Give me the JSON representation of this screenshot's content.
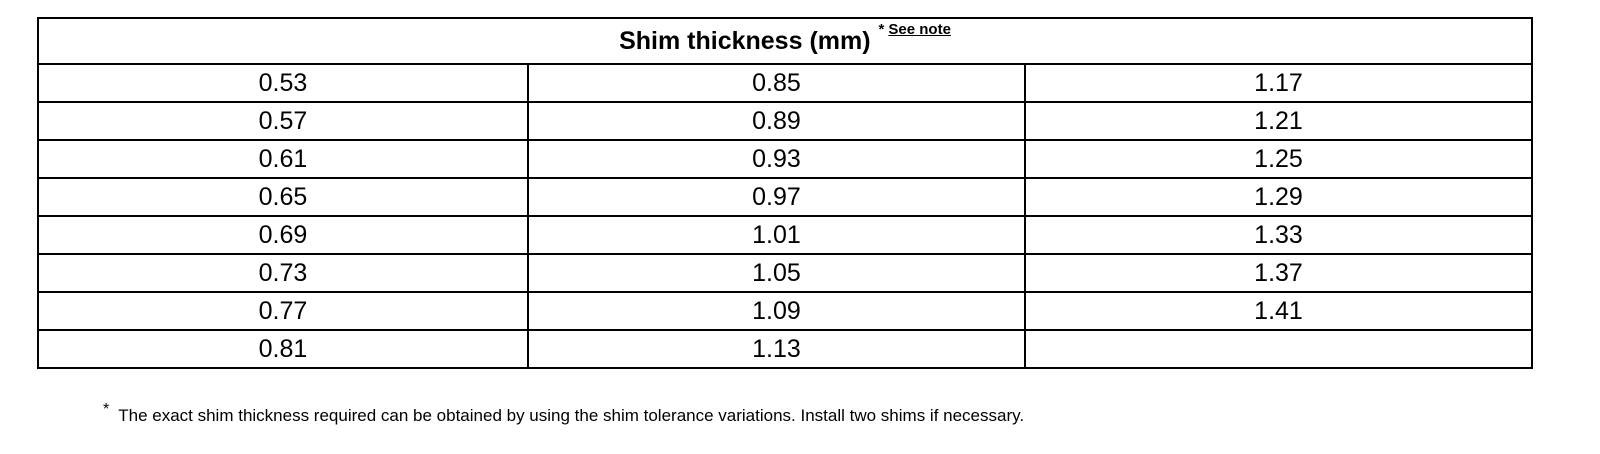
{
  "table": {
    "title": "Shim thickness (mm)",
    "note_marker": "*",
    "note_link": "See note",
    "rows": [
      [
        "0.53",
        "0.85",
        "1.17"
      ],
      [
        "0.57",
        "0.89",
        "1.21"
      ],
      [
        "0.61",
        "0.93",
        "1.25"
      ],
      [
        "0.65",
        "0.97",
        "1.29"
      ],
      [
        "0.69",
        "1.01",
        "1.33"
      ],
      [
        "0.73",
        "1.05",
        "1.37"
      ],
      [
        "0.77",
        "1.09",
        "1.41"
      ],
      [
        "0.81",
        "1.13",
        ""
      ]
    ]
  },
  "footnote": {
    "marker": "*",
    "text": "The exact shim thickness required can be obtained by using the shim tolerance variations. Install two shims if necessary."
  }
}
